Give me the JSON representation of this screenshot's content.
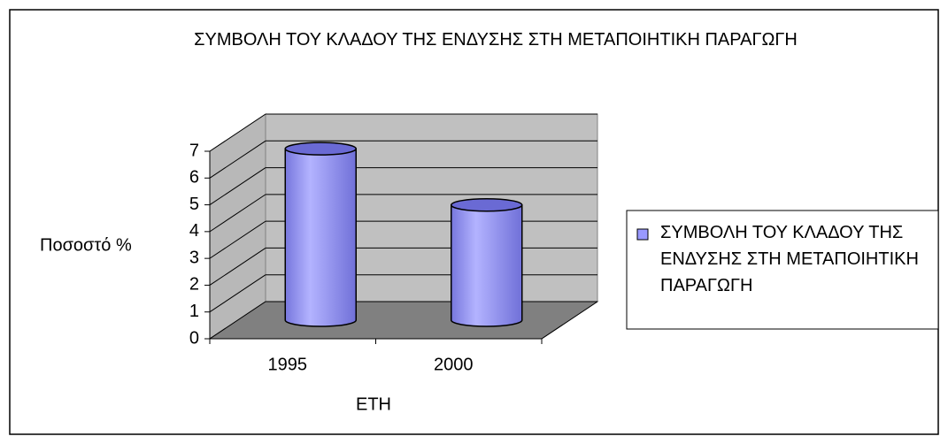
{
  "chart_data": {
    "type": "bar3d",
    "title": "ΣΥΜΒΟΛΗ ΤΟΥ ΚΛΑΔΟΥ ΤΗΣ ΕΝΔΥΣΗΣ ΣΤΗ ΜΕΤΑΠΟΙΗΤΙΚΗ ΠΑΡΑΓΩΓΗ",
    "x_label": "ΕΤΗ",
    "y_label": "Ποσοστό %",
    "categories": [
      "1995",
      "2000"
    ],
    "series": [
      {
        "name": "ΣΥΜΒΟΛΗ ΤΟΥ ΚΛΑΔΟΥ ΤΗΣ ΕΝΔΥΣΗΣ ΣΤΗ ΜΕΤΑΠΟΙΗΤΙΚΗ ΠΑΡΑΓΩΓΗ",
        "color": "#9999ff",
        "values": [
          6.4,
          4.3
        ]
      }
    ],
    "ylim": [
      0,
      7
    ],
    "yticks": [
      0,
      1,
      2,
      3,
      4,
      5,
      6,
      7
    ],
    "grid": true,
    "legend": "right"
  }
}
